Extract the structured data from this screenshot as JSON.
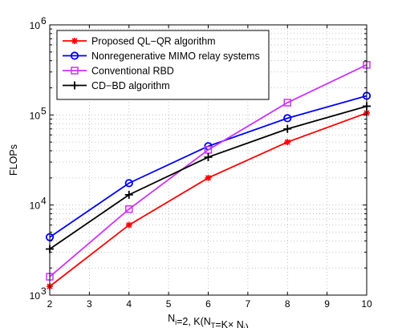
{
  "chart_data": {
    "type": "line",
    "xlabel": "N_i=2, K(N_T=K× N_i)",
    "ylabel": "FLOPs",
    "x_scale": "linear",
    "y_scale": "log",
    "xlim": [
      2,
      10
    ],
    "ylim": [
      1000,
      1000000
    ],
    "x_ticks": [
      2,
      3,
      4,
      5,
      6,
      7,
      8,
      9,
      10
    ],
    "x_tick_labels": [
      "2",
      "3",
      "4",
      "5",
      "6",
      "7",
      "8",
      "9",
      "10"
    ],
    "y_ticks": [
      1000,
      10000,
      100000,
      1000000
    ],
    "y_tick_labels": [
      {
        "base": "10",
        "exp": "3"
      },
      {
        "base": "10",
        "exp": "4"
      },
      {
        "base": "10",
        "exp": "5"
      },
      {
        "base": "10",
        "exp": "6"
      }
    ],
    "grid": true,
    "legend_position": "top-left",
    "x": [
      2,
      4,
      6,
      8,
      10
    ],
    "series": [
      {
        "name": "Proposed QL−QR algorithm",
        "color": "#ff0000",
        "marker": "star",
        "values": [
          1250,
          6000,
          20000,
          50000,
          105000
        ]
      },
      {
        "name": "Nonregenerative MIMO relay systems",
        "color": "#0000ff",
        "marker": "circle",
        "values": [
          4400,
          17500,
          45000,
          92000,
          163000
        ]
      },
      {
        "name": "Conventional RBD",
        "color": "#cc33ff",
        "marker": "square",
        "values": [
          1600,
          9000,
          41000,
          137000,
          360000
        ]
      },
      {
        "name": "CD−BD algorithm",
        "color": "#000000",
        "marker": "plus",
        "values": [
          3250,
          13000,
          34000,
          70000,
          125000
        ]
      }
    ]
  }
}
